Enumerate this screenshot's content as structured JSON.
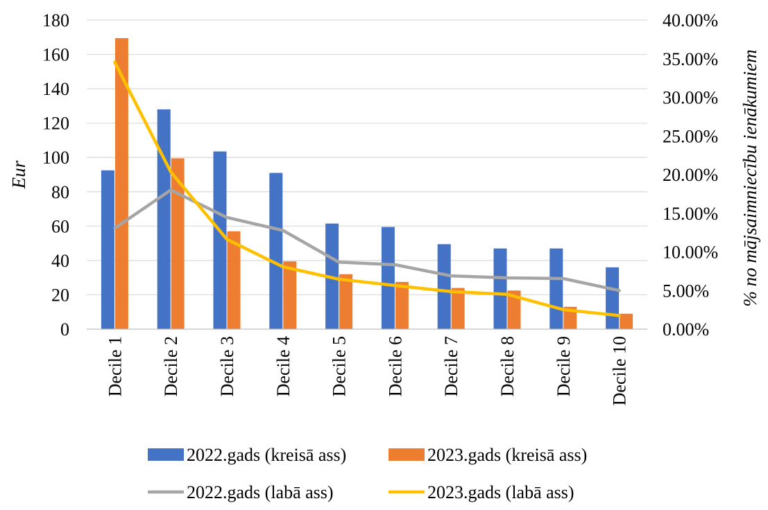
{
  "chart_data": {
    "type": "bar",
    "categories": [
      "Decile 1",
      "Decile 2",
      "Decile 3",
      "Decile 4",
      "Decile 5",
      "Decile 6",
      "Decile 7",
      "Decile 8",
      "Decile 9",
      "Decile 10"
    ],
    "ylabel": "Eur",
    "y2label": "% no mājsaimniecību ienākumiem",
    "ylim": [
      0,
      180
    ],
    "y2lim": [
      0,
      0.4
    ],
    "yticks": [
      "0",
      "20",
      "40",
      "60",
      "80",
      "100",
      "120",
      "140",
      "160",
      "180"
    ],
    "y2ticks": [
      "0.00%",
      "5.00%",
      "10.00%",
      "15.00%",
      "20.00%",
      "25.00%",
      "30.00%",
      "35.00%",
      "40.00%"
    ],
    "grid": true,
    "legend_position": "bottom",
    "series": [
      {
        "name": "2022.gads (kreisā ass)",
        "kind": "bar",
        "axis": "left",
        "color": "#4472c4",
        "values": [
          92.5,
          128,
          103.5,
          91,
          61.5,
          59.5,
          49.5,
          47,
          47,
          36
        ]
      },
      {
        "name": "2023.gads (kreisā ass)",
        "kind": "bar",
        "axis": "left",
        "color": "#ed7d31",
        "values": [
          169.5,
          99.5,
          57,
          39.5,
          32,
          27.5,
          24,
          22.5,
          13,
          9
        ]
      },
      {
        "name": "2022.gads (labā ass)",
        "kind": "line",
        "axis": "right",
        "color": "#a5a5a5",
        "values": [
          0.1306,
          0.1801,
          0.1446,
          0.1278,
          0.0866,
          0.0834,
          0.069,
          0.0664,
          0.0655,
          0.05
        ]
      },
      {
        "name": "2023.gads (labā ass)",
        "kind": "line",
        "axis": "right",
        "color": "#ffc000",
        "values": [
          0.3454,
          0.2034,
          0.1163,
          0.0807,
          0.0646,
          0.0565,
          0.0486,
          0.0451,
          0.0253,
          0.0176
        ]
      }
    ]
  }
}
